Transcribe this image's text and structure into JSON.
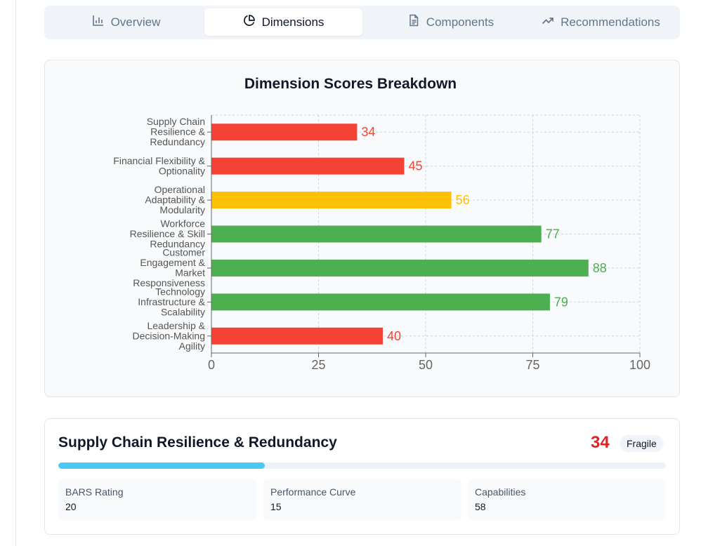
{
  "tabs": [
    {
      "label": "Overview",
      "icon": "bar-chart-icon",
      "active": false
    },
    {
      "label": "Dimensions",
      "icon": "pie-chart-icon",
      "active": true
    },
    {
      "label": "Components",
      "icon": "document-icon",
      "active": false
    },
    {
      "label": "Recommendations",
      "icon": "trending-up-icon",
      "active": false
    }
  ],
  "chart_data": {
    "type": "bar",
    "orientation": "horizontal",
    "title": "Dimension Scores Breakdown",
    "categories": [
      [
        "Supply Chain",
        "Resilience &",
        "Redundancy"
      ],
      [
        "Financial Flexibility &",
        "Optionality"
      ],
      [
        "Operational",
        "Adaptability &",
        "Modularity"
      ],
      [
        "Workforce",
        "Resilience & Skill",
        "Redundancy"
      ],
      [
        "Customer",
        "Engagement &",
        "Market",
        "Responsiveness"
      ],
      [
        "Technology",
        "Infrastructure &",
        "Scalability"
      ],
      [
        "Leadership &",
        "Decision-Making",
        "Agility"
      ]
    ],
    "values": [
      34,
      45,
      56,
      77,
      88,
      79,
      40
    ],
    "colors": [
      "#f44336",
      "#f44336",
      "#ffc107",
      "#4caf50",
      "#4caf50",
      "#4caf50",
      "#f44336"
    ],
    "xlim": [
      0,
      100
    ],
    "xticks": [
      0,
      25,
      50,
      75,
      100
    ],
    "xlabel": "",
    "ylabel": "",
    "grid": true,
    "data_labels": true
  },
  "detail": {
    "title": "Supply Chain Resilience & Redundancy",
    "score": "34",
    "badge": "Fragile",
    "progress": 34,
    "metrics": [
      {
        "label": "BARS Rating",
        "value": "20"
      },
      {
        "label": "Performance Curve",
        "value": "15"
      },
      {
        "label": "Capabilities",
        "value": "58"
      }
    ]
  }
}
